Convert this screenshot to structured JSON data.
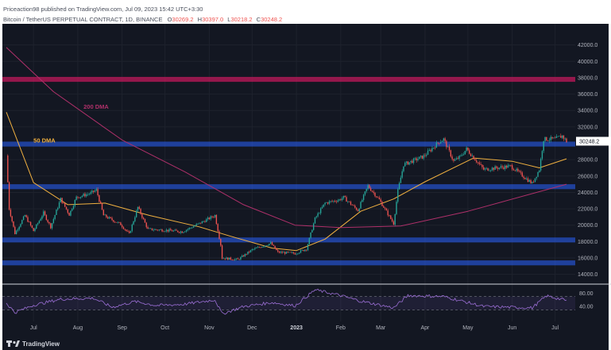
{
  "header": {
    "publisher": "Priceaction98 published on TradingView.com, Jul 09, 2023 15:42 UTC+3:30",
    "symbol": "Bitcoin / TetherUS PERPETUAL CONTRACT, 1D, BINANCE",
    "ohlc": [
      {
        "key": "O",
        "value": "30269.2"
      },
      {
        "key": "H",
        "value": "30397.0"
      },
      {
        "key": "L",
        "value": "30218.2"
      },
      {
        "key": "C",
        "value": "30248.2"
      }
    ]
  },
  "footer": {
    "brand": "TradingView",
    "logo_icon": "tradingview-logo-icon"
  },
  "colors": {
    "background": "#131722",
    "up": "#26a69a",
    "down": "#ef5350",
    "zone_blue": "#2962ff",
    "zone_red": "#c2185b",
    "ma50": "#f0b040",
    "ma200": "#b0306a",
    "rsi": "#9c6fd6"
  },
  "chart_data": [
    {
      "type": "candlestick",
      "title": "",
      "xlabel": "",
      "ylabel": "",
      "ylim": [
        13000,
        44000
      ],
      "y_ticks": [
        "14000.0",
        "16000.0",
        "18000.0",
        "20000.0",
        "22000.0",
        "24000.0",
        "26000.0",
        "28000.0",
        "32000.0",
        "34000.0",
        "36000.0",
        "38000.0",
        "40000.0",
        "42000.0"
      ],
      "x_ticks": [
        "Jul",
        "Aug",
        "Sep",
        "Oct",
        "Nov",
        "Dec",
        "2023",
        "Feb",
        "Mar",
        "Apr",
        "May",
        "Jun",
        "Jul"
      ],
      "x_tick_dates": [
        "2022-07-01",
        "2022-08-01",
        "2022-09-01",
        "2022-10-01",
        "2022-11-01",
        "2022-12-01",
        "2023-01-01",
        "2023-02-01",
        "2023-03-01",
        "2023-04-01",
        "2023-05-01",
        "2023-06-01",
        "2023-07-01"
      ],
      "date_range": [
        "2022-06-12",
        "2023-07-09"
      ],
      "last_price": "30248.2",
      "close_series": [
        [
          "2022-06-12",
          28500
        ],
        [
          "2022-06-14",
          22000
        ],
        [
          "2022-06-18",
          19000
        ],
        [
          "2022-06-25",
          21200
        ],
        [
          "2022-07-01",
          19300
        ],
        [
          "2022-07-08",
          21500
        ],
        [
          "2022-07-13",
          19800
        ],
        [
          "2022-07-20",
          23200
        ],
        [
          "2022-07-26",
          21300
        ],
        [
          "2022-07-31",
          23400
        ],
        [
          "2022-08-10",
          23900
        ],
        [
          "2022-08-14",
          24300
        ],
        [
          "2022-08-19",
          21200
        ],
        [
          "2022-08-31",
          20100
        ],
        [
          "2022-09-06",
          18900
        ],
        [
          "2022-09-12",
          22200
        ],
        [
          "2022-09-19",
          19500
        ],
        [
          "2022-10-01",
          19400
        ],
        [
          "2022-10-13",
          19200
        ],
        [
          "2022-10-25",
          20200
        ],
        [
          "2022-11-05",
          21200
        ],
        [
          "2022-11-09",
          17600
        ],
        [
          "2022-11-10",
          16000
        ],
        [
          "2022-11-21",
          15800
        ],
        [
          "2022-12-01",
          17000
        ],
        [
          "2022-12-14",
          17800
        ],
        [
          "2022-12-19",
          16700
        ],
        [
          "2022-12-31",
          16550
        ],
        [
          "2023-01-08",
          17100
        ],
        [
          "2023-01-14",
          20800
        ],
        [
          "2023-01-21",
          22700
        ],
        [
          "2023-01-31",
          23100
        ],
        [
          "2023-02-03",
          23400
        ],
        [
          "2023-02-13",
          21800
        ],
        [
          "2023-02-20",
          24800
        ],
        [
          "2023-02-28",
          23100
        ],
        [
          "2023-03-10",
          20200
        ],
        [
          "2023-03-13",
          24200
        ],
        [
          "2023-03-17",
          27400
        ],
        [
          "2023-03-31",
          28400
        ],
        [
          "2023-04-11",
          30200
        ],
        [
          "2023-04-14",
          30500
        ],
        [
          "2023-04-21",
          27800
        ],
        [
          "2023-04-26",
          28400
        ],
        [
          "2023-04-30",
          29300
        ],
        [
          "2023-05-12",
          26800
        ],
        [
          "2023-05-31",
          27200
        ],
        [
          "2023-06-15",
          25100
        ],
        [
          "2023-06-20",
          26800
        ],
        [
          "2023-06-23",
          30500
        ],
        [
          "2023-07-01",
          30500
        ],
        [
          "2023-07-06",
          30900
        ],
        [
          "2023-07-09",
          30248
        ]
      ],
      "series": [
        {
          "name": "50 DMA",
          "values": [
            [
              "2022-06-12",
              33800
            ],
            [
              "2022-07-01",
              25200
            ],
            [
              "2022-07-25",
              22500
            ],
            [
              "2022-08-20",
              22700
            ],
            [
              "2022-09-20",
              21200
            ],
            [
              "2022-10-25",
              19800
            ],
            [
              "2022-11-15",
              18700
            ],
            [
              "2022-12-15",
              17200
            ],
            [
              "2023-01-01",
              16900
            ],
            [
              "2023-01-21",
              18300
            ],
            [
              "2023-02-15",
              21700
            ],
            [
              "2023-03-10",
              23200
            ],
            [
              "2023-04-01",
              25300
            ],
            [
              "2023-05-05",
              28200
            ],
            [
              "2023-06-01",
              27800
            ],
            [
              "2023-06-20",
              27000
            ],
            [
              "2023-07-09",
              28100
            ]
          ]
        },
        {
          "name": "200 DMA",
          "values": [
            [
              "2022-06-12",
              41700
            ],
            [
              "2022-07-15",
              36300
            ],
            [
              "2022-09-01",
              30400
            ],
            [
              "2022-10-15",
              26500
            ],
            [
              "2022-11-25",
              22500
            ],
            [
              "2022-12-31",
              20000
            ],
            [
              "2023-02-01",
              19700
            ],
            [
              "2023-03-15",
              19900
            ],
            [
              "2023-05-01",
              21700
            ],
            [
              "2023-07-09",
              25000
            ]
          ]
        }
      ],
      "zones": [
        {
          "color": "red",
          "from": 37500,
          "to": 38100
        },
        {
          "color": "blue",
          "from": 29600,
          "to": 30200
        },
        {
          "color": "blue",
          "from": 24400,
          "to": 25000
        },
        {
          "color": "blue",
          "from": 17900,
          "to": 18500
        },
        {
          "color": "blue",
          "from": 15100,
          "to": 15700
        }
      ],
      "annotations": [
        {
          "text": "200 DMA",
          "color": "#b0306a",
          "x": "2022-08-05",
          "y": 34200
        },
        {
          "text": "50 DMA",
          "color": "#f0b040",
          "x": "2022-07-01",
          "y": 30100
        }
      ]
    },
    {
      "type": "line",
      "title": "",
      "ylim": [
        0,
        100
      ],
      "y_ticks": [
        "80.00",
        "40.00"
      ],
      "bands": [
        70,
        30
      ],
      "series": [
        {
          "values": [
            [
              "2022-06-12",
              50
            ],
            [
              "2022-06-18",
              22
            ],
            [
              "2022-07-01",
              44
            ],
            [
              "2022-07-20",
              62
            ],
            [
              "2022-08-12",
              65
            ],
            [
              "2022-08-25",
              38
            ],
            [
              "2022-09-10",
              55
            ],
            [
              "2022-09-25",
              43
            ],
            [
              "2022-10-15",
              47
            ],
            [
              "2022-11-05",
              60
            ],
            [
              "2022-11-10",
              18
            ],
            [
              "2022-11-25",
              40
            ],
            [
              "2022-12-15",
              52
            ],
            [
              "2022-12-31",
              42
            ],
            [
              "2023-01-14",
              90
            ],
            [
              "2023-01-31",
              74
            ],
            [
              "2023-02-15",
              56
            ],
            [
              "2023-03-10",
              36
            ],
            [
              "2023-03-20",
              73
            ],
            [
              "2023-04-14",
              70
            ],
            [
              "2023-05-12",
              40
            ],
            [
              "2023-06-15",
              36
            ],
            [
              "2023-06-25",
              72
            ],
            [
              "2023-07-09",
              58
            ]
          ]
        }
      ]
    }
  ]
}
